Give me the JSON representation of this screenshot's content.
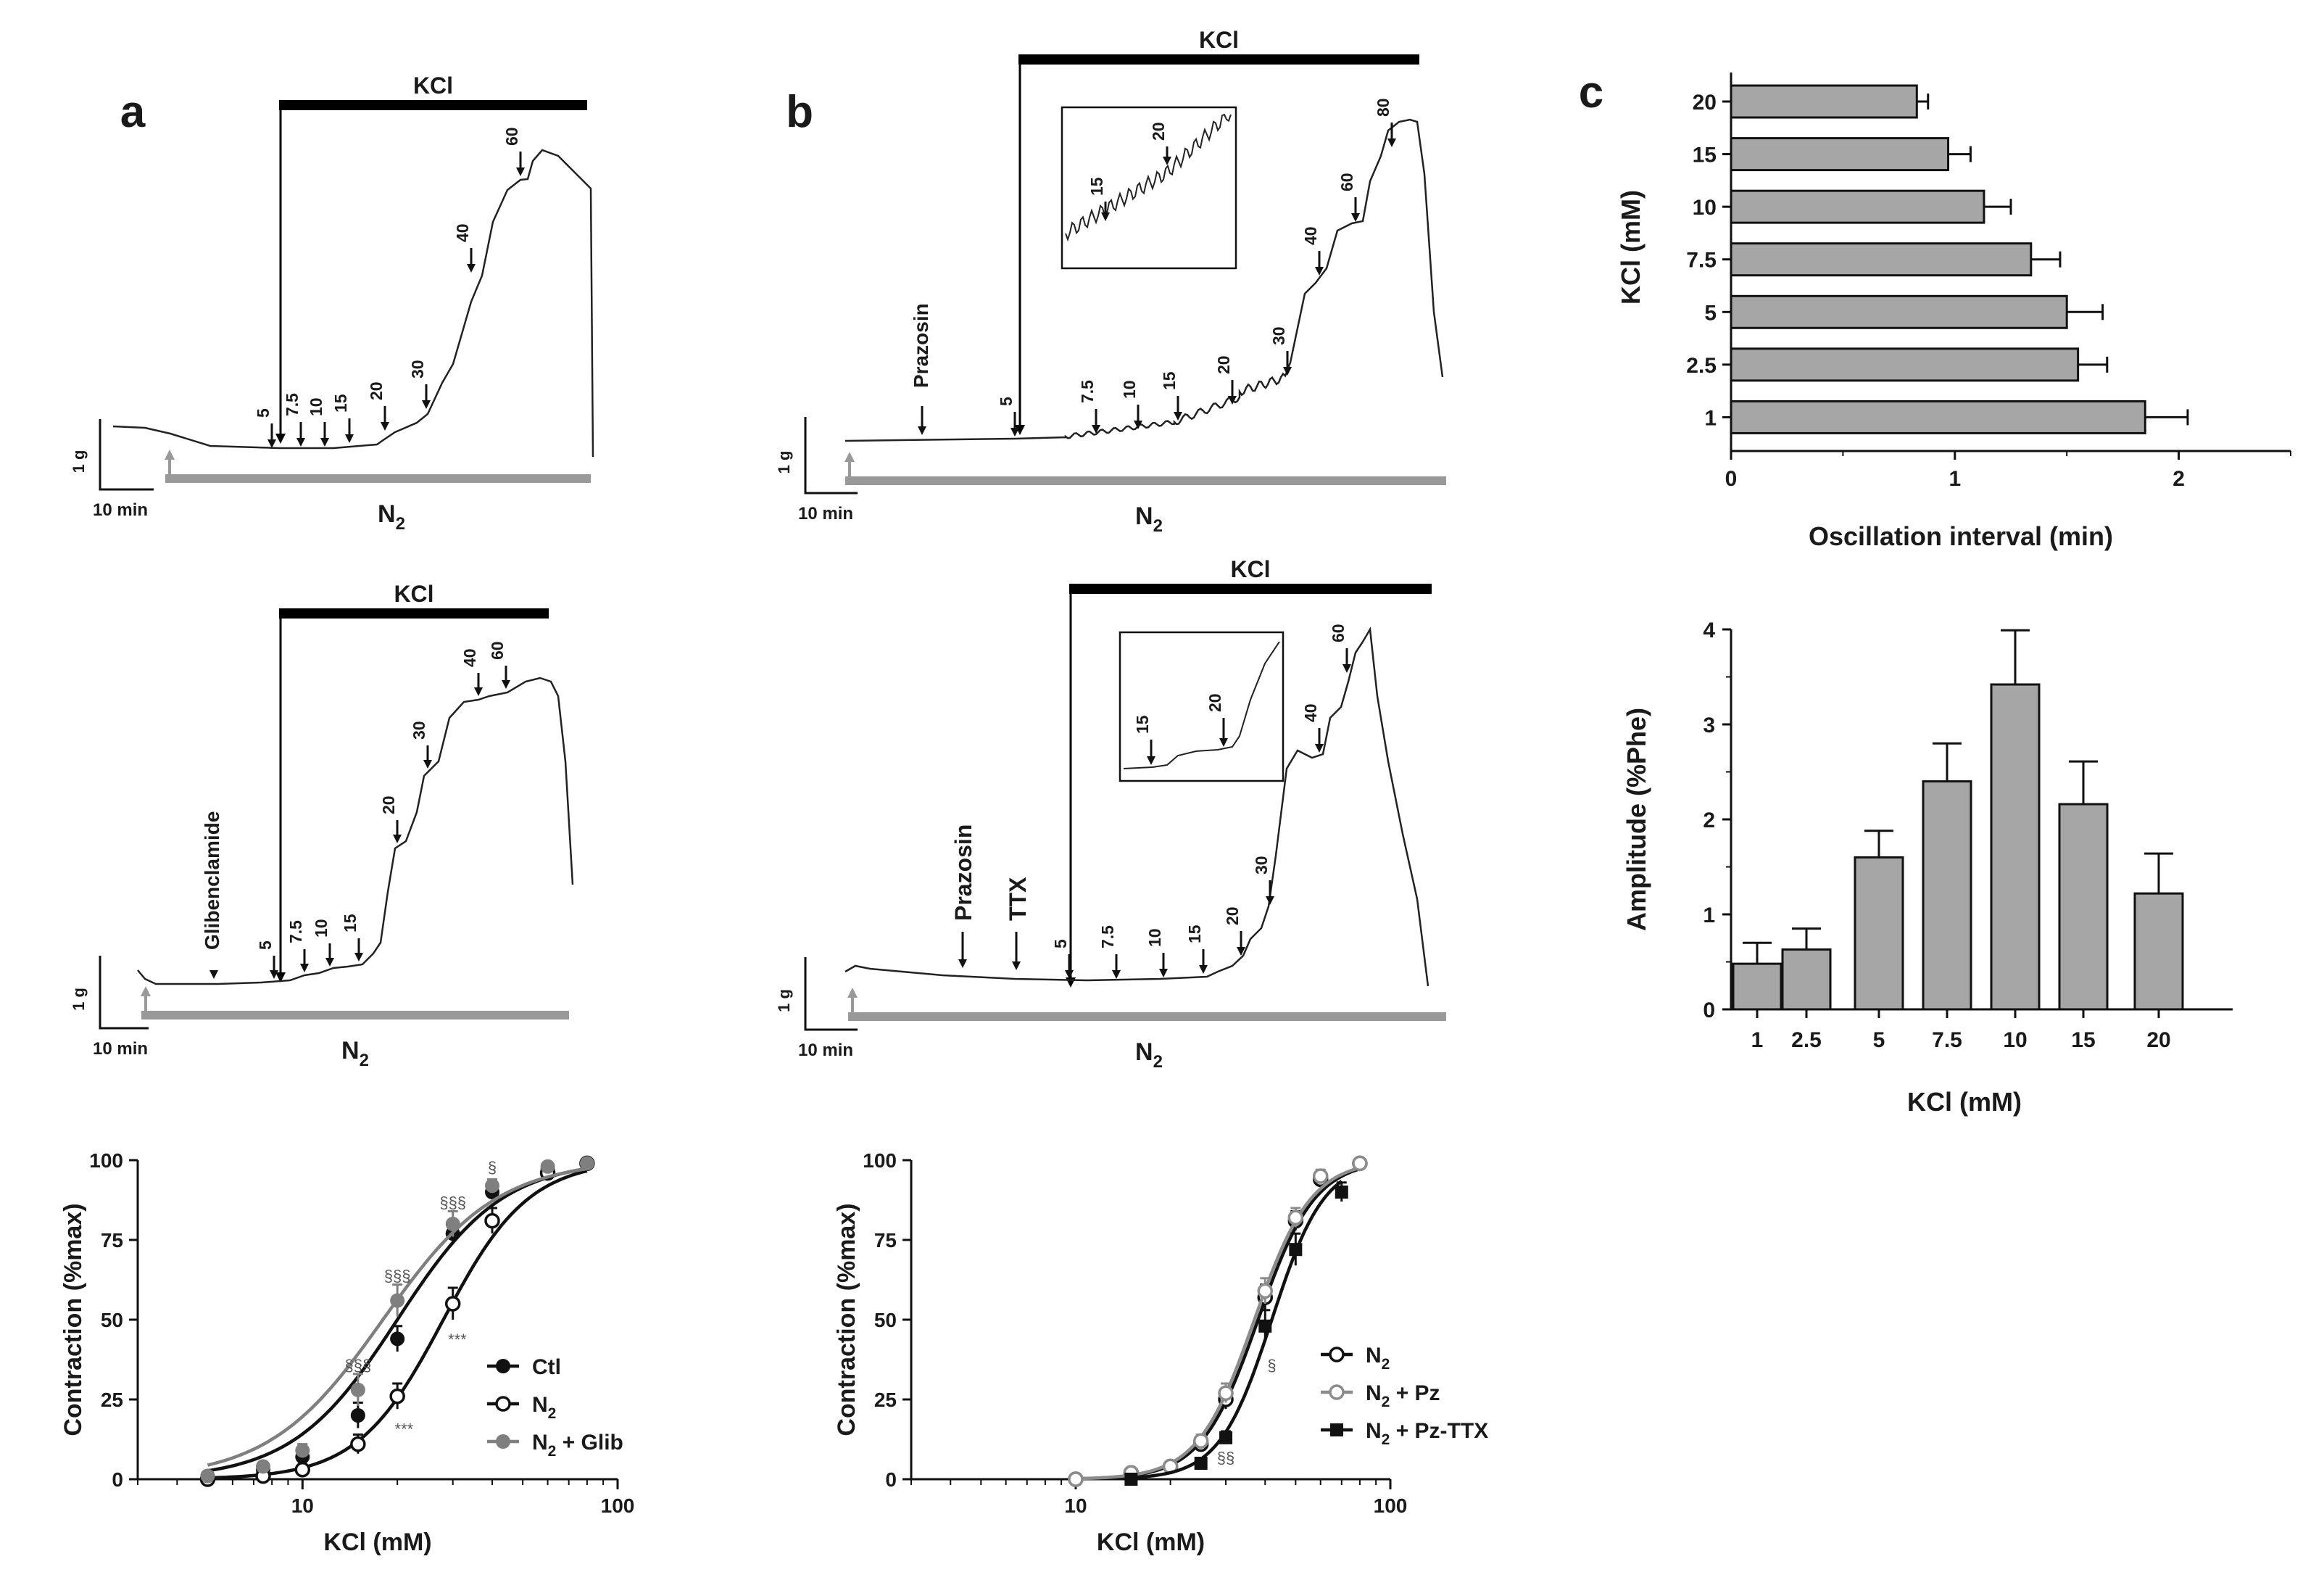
{
  "panels": {
    "a": "a",
    "b": "b",
    "c": "c"
  },
  "common": {
    "kcl": "KCl",
    "n2": "N",
    "n2_sub": "2",
    "scale_g": "1 g",
    "scale_t": "10 min"
  },
  "traces": {
    "a_top": {
      "conc_labels": [
        "5",
        "7.5",
        "10",
        "15",
        "20",
        "30",
        "40",
        "60"
      ]
    },
    "a_mid": {
      "drug": "Glibenclamide",
      "conc_labels": [
        "5",
        "7.5",
        "10",
        "15",
        "20",
        "30",
        "40",
        "60"
      ]
    },
    "b_top": {
      "drug": "Prazosin",
      "conc_labels": [
        "5",
        "7.5",
        "10",
        "15",
        "20",
        "30",
        "40",
        "60",
        "80"
      ],
      "inset_labels": [
        "15",
        "20"
      ]
    },
    "b_mid": {
      "drug1": "Prazosin",
      "drug2": "TTX",
      "conc_labels": [
        "5",
        "7.5",
        "10",
        "15",
        "20",
        "30",
        "40",
        "60"
      ],
      "inset_labels": [
        "15",
        "20"
      ]
    }
  },
  "chart_data": [
    {
      "id": "a-dose-response",
      "type": "scatter",
      "xscale": "log",
      "xlabel": "KCl (mM)",
      "ylabel": "Contraction (%max)",
      "xlim": [
        3,
        100
      ],
      "ylim": [
        0,
        100
      ],
      "xticks": [
        "10",
        "100"
      ],
      "yticks": [
        "0",
        "25",
        "50",
        "75",
        "100"
      ],
      "legend_position": "bottom-right",
      "series": [
        {
          "name": "Ctl",
          "name_main": "Ctl",
          "name_sub": "",
          "name_rest": "",
          "color": "#111111",
          "marker": "filled-circle",
          "ec50": 20,
          "hill": 2.6,
          "x": [
            5,
            7.5,
            10,
            15,
            20,
            30,
            40,
            60,
            80
          ],
          "y": [
            1,
            3,
            7,
            20,
            44,
            77,
            90,
            97,
            99
          ],
          "err": [
            1,
            1,
            2,
            4,
            4,
            3,
            2,
            1,
            1
          ]
        },
        {
          "name": "N2",
          "name_main": "N",
          "name_sub": "2",
          "name_rest": "",
          "color": "#111111",
          "marker": "open-circle",
          "ec50": 28,
          "hill": 3.2,
          "x": [
            5,
            7.5,
            10,
            15,
            20,
            30,
            40,
            60,
            80
          ],
          "y": [
            0,
            1,
            3,
            11,
            26,
            55,
            81,
            96,
            99
          ],
          "err": [
            0,
            1,
            1,
            3,
            4,
            5,
            4,
            1,
            1
          ]
        },
        {
          "name": "N2+Glib",
          "name_main": "N",
          "name_sub": "2",
          "name_rest": "+ Glib",
          "color": "#7f7f7f",
          "marker": "filled-circle",
          "ec50": 18,
          "hill": 2.4,
          "x": [
            5,
            7.5,
            10,
            15,
            20,
            30,
            40,
            60,
            80
          ],
          "y": [
            1,
            4,
            9,
            28,
            56,
            80,
            92,
            98,
            99
          ],
          "err": [
            1,
            1,
            2,
            5,
            5,
            4,
            2,
            1,
            1
          ]
        }
      ],
      "annotations": [
        {
          "text": "§§§",
          "x": 15,
          "y": 34
        },
        {
          "text": "§§§",
          "x": 20,
          "y": 62
        },
        {
          "text": "§§§",
          "x": 30,
          "y": 85
        },
        {
          "text": "§",
          "x": 40,
          "y": 96
        },
        {
          "text": "***",
          "x": 21,
          "y": 14
        },
        {
          "text": "***",
          "x": 31,
          "y": 42
        }
      ]
    },
    {
      "id": "b-dose-response",
      "type": "scatter",
      "xscale": "log",
      "xlabel": "KCl (mM)",
      "ylabel": "Contraction (%max)",
      "xlim": [
        3,
        100
      ],
      "ylim": [
        0,
        100
      ],
      "xticks": [
        "10",
        "100"
      ],
      "yticks": [
        "0",
        "25",
        "50",
        "75",
        "100"
      ],
      "legend_position": "right",
      "series": [
        {
          "name": "N2",
          "name_main": "N",
          "name_sub": "2",
          "name_rest": "",
          "color": "#111111",
          "marker": "open-circle",
          "ec50": 38,
          "hill": 4.8,
          "x": [
            10,
            15,
            20,
            25,
            30,
            40,
            50,
            60,
            80
          ],
          "y": [
            0,
            2,
            4,
            11,
            25,
            57,
            81,
            94,
            99
          ],
          "err": [
            0,
            1,
            1,
            2,
            3,
            4,
            3,
            2,
            1
          ]
        },
        {
          "name": "N2+Pz",
          "name_main": "N",
          "name_sub": "2",
          "name_rest": "+ Pz",
          "color": "#8c8c8c",
          "marker": "open-circle",
          "ec50": 37,
          "hill": 4.8,
          "x": [
            10,
            15,
            20,
            25,
            30,
            40,
            50,
            60,
            80
          ],
          "y": [
            0,
            2,
            4,
            12,
            27,
            59,
            82,
            95,
            99
          ],
          "err": [
            0,
            1,
            1,
            2,
            3,
            4,
            3,
            2,
            1
          ]
        },
        {
          "name": "N2+Pz-TTX",
          "name_main": "N",
          "name_sub": "2",
          "name_rest": "+ Pz-TTX",
          "color": "#111111",
          "marker": "filled-square",
          "ec50": 42,
          "hill": 5.2,
          "x": [
            15,
            25,
            30,
            40,
            50,
            70
          ],
          "y": [
            0,
            5,
            13,
            48,
            72,
            90
          ],
          "err": [
            0,
            1,
            2,
            5,
            5,
            3
          ]
        }
      ],
      "annotations": [
        {
          "text": "§§",
          "x": 30,
          "y": 5
        },
        {
          "text": "§",
          "x": 42,
          "y": 34
        }
      ]
    },
    {
      "id": "c-oscillation-interval",
      "type": "bar",
      "orientation": "horizontal",
      "categories": [
        "20",
        "15",
        "10",
        "7.5",
        "5",
        "2.5",
        "1"
      ],
      "values": [
        0.83,
        0.97,
        1.13,
        1.34,
        1.5,
        1.55,
        1.85
      ],
      "err": [
        0.05,
        0.1,
        0.12,
        0.13,
        0.16,
        0.13,
        0.19
      ],
      "xlabel": "Oscillation interval (min)",
      "ylabel": "KCl (mM)",
      "xlim": [
        0,
        2.5
      ],
      "xticks": [
        "0",
        "1",
        "2"
      ],
      "bar_color": "#a6a6a6"
    },
    {
      "id": "c-amplitude",
      "type": "bar",
      "categories": [
        "1",
        "2.5",
        "5",
        "7.5",
        "10",
        "15",
        "20"
      ],
      "values": [
        0.48,
        0.63,
        1.6,
        2.4,
        3.42,
        2.16,
        1.22
      ],
      "err": [
        0.22,
        0.22,
        0.28,
        0.4,
        0.57,
        0.45,
        0.42
      ],
      "xlabel": "KCl (mM)",
      "ylabel": "Amplitude (%Phe)",
      "ylim": [
        0,
        4
      ],
      "yticks": [
        "0",
        "1",
        "2",
        "3",
        "4"
      ],
      "bar_color": "#a6a6a6"
    }
  ]
}
